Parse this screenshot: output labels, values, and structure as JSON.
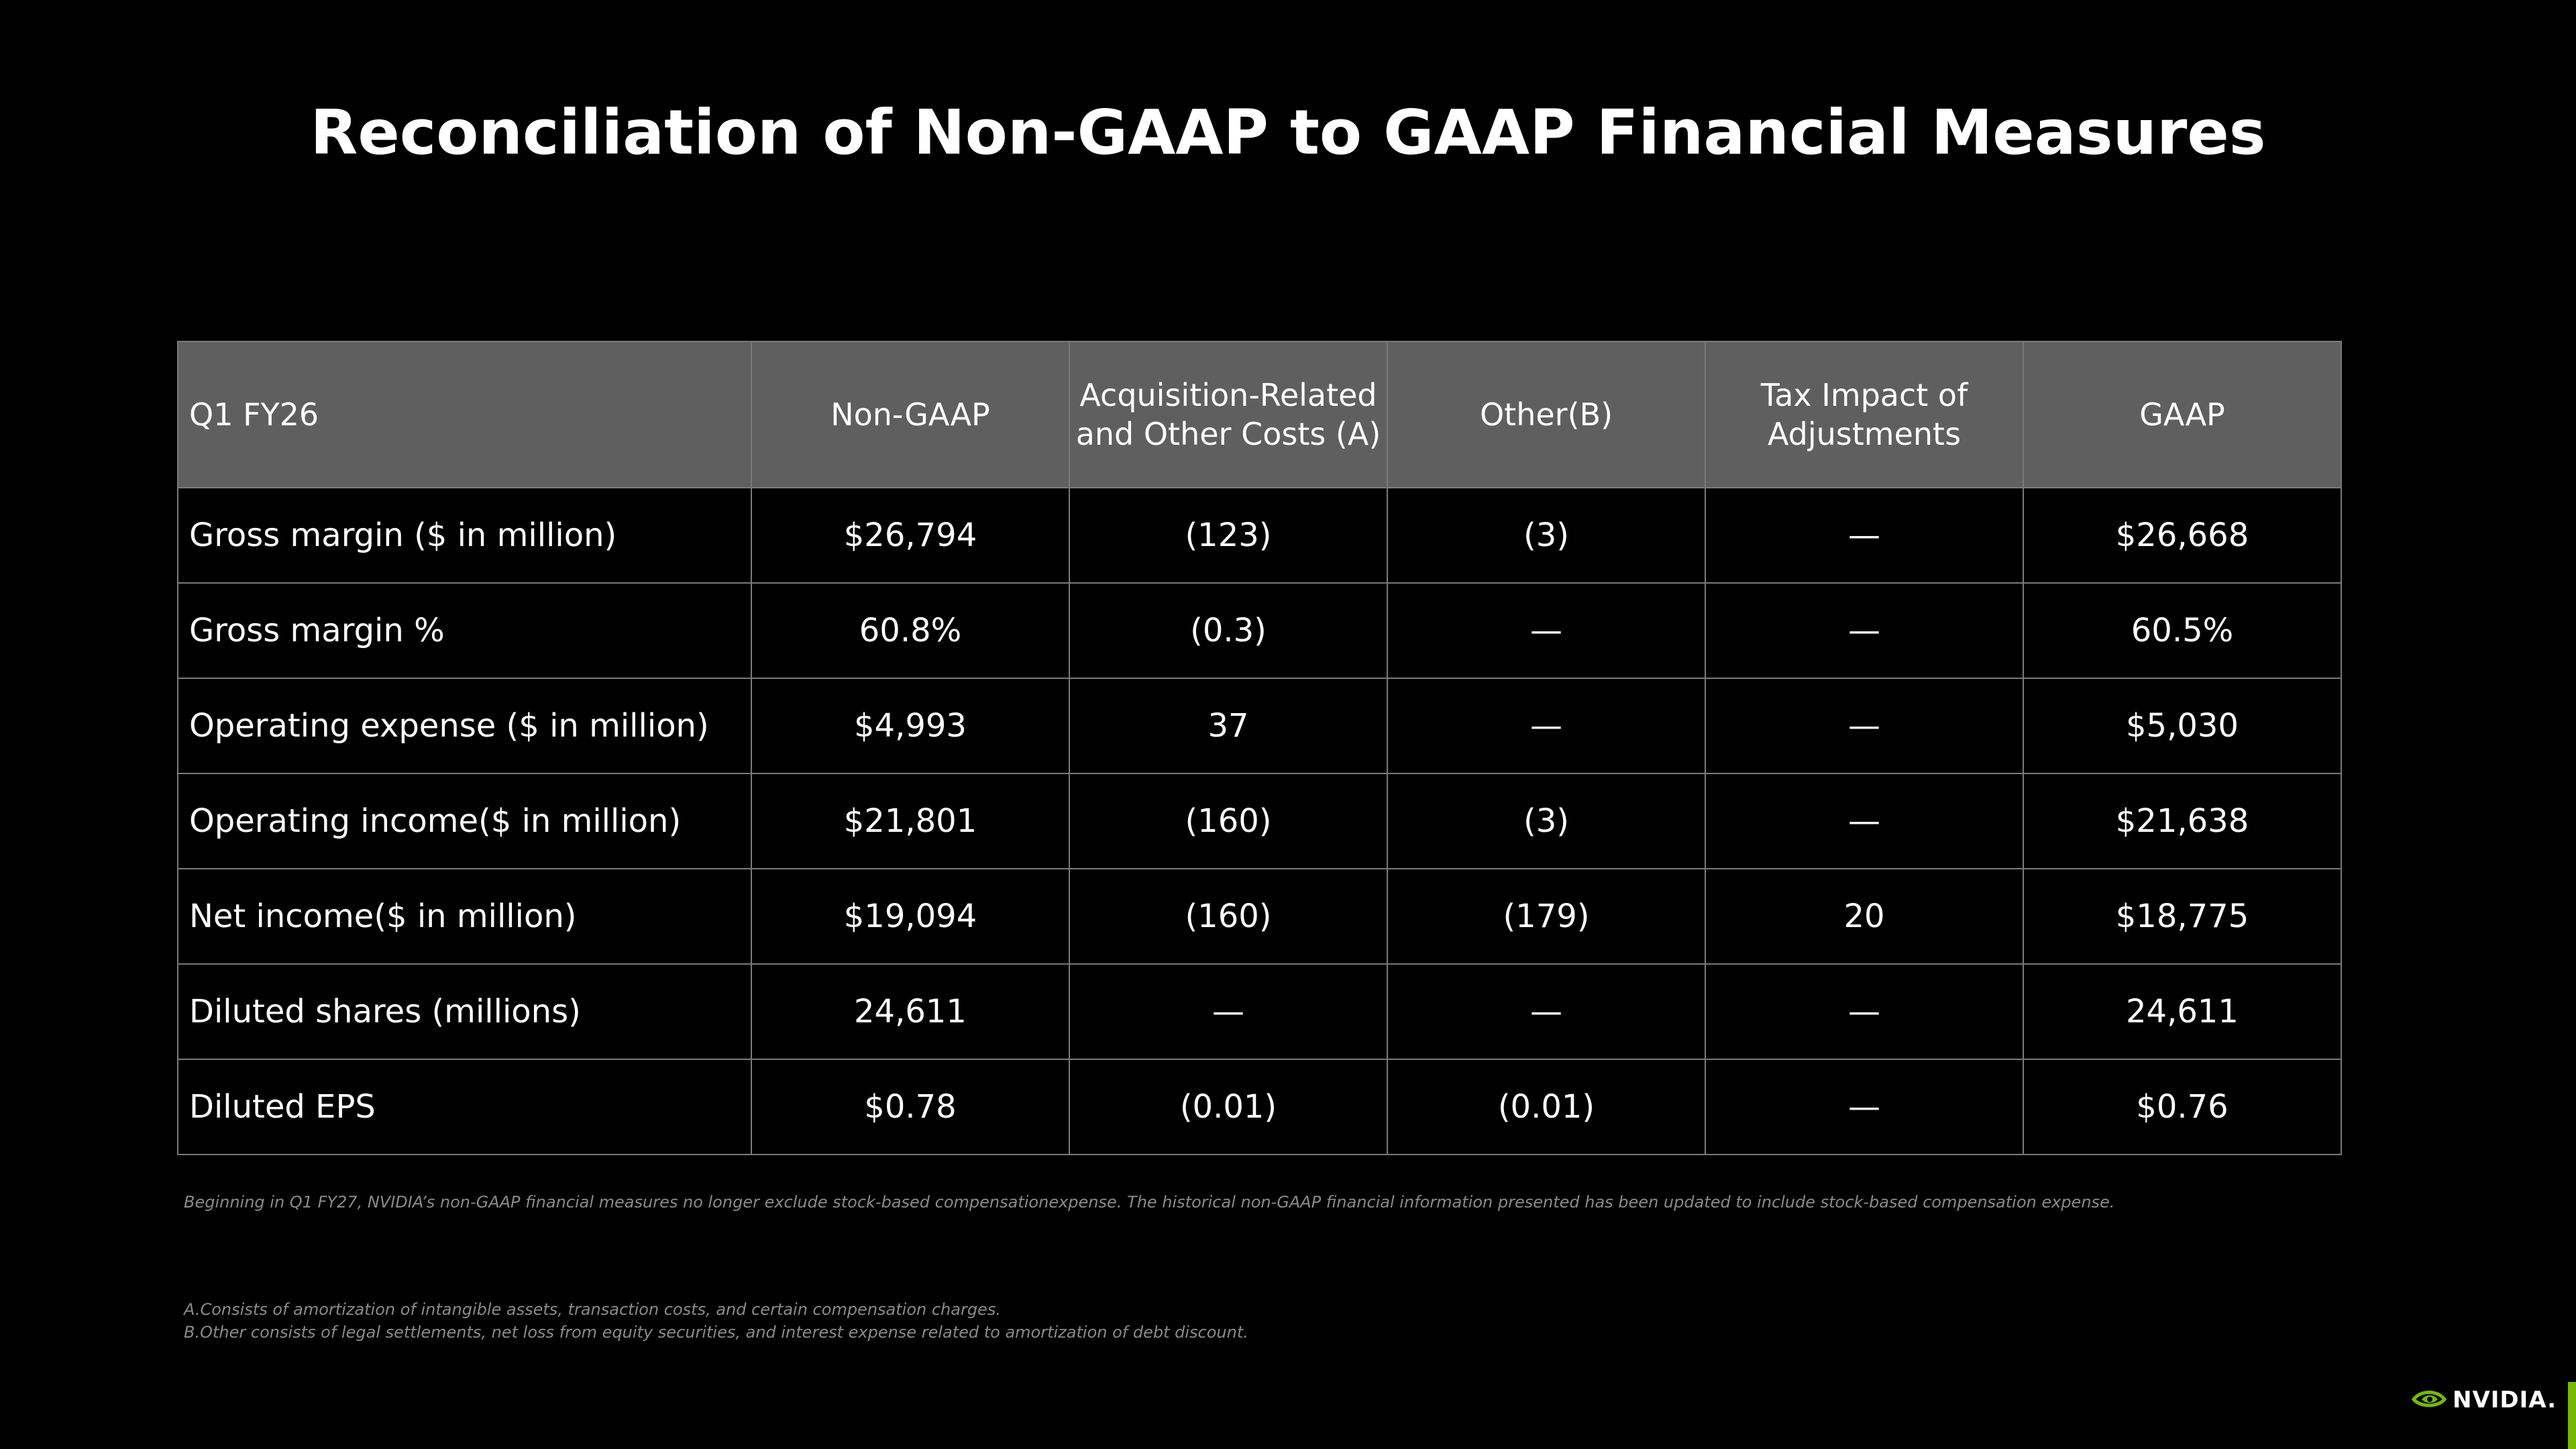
{
  "slide": {
    "title": "Reconciliation of Non-GAAP to GAAP Financial Measures"
  },
  "table": {
    "headers": [
      "Q1 FY26",
      "Non-GAAP",
      "Acquisition-Related and Other Costs (A)",
      "Other(B)",
      "Tax Impact of Adjustments",
      "GAAP"
    ],
    "rows": [
      [
        "Gross margin ($ in million)",
        "$26,794",
        "(123)",
        "(3)",
        "—",
        "$26,668"
      ],
      [
        "Gross margin %",
        "60.8%",
        "(0.3)",
        "—",
        "—",
        "60.5%"
      ],
      [
        "Operating expense ($ in million)",
        "$4,993",
        "37",
        "—",
        "—",
        "$5,030"
      ],
      [
        "Operating income($ in million)",
        "$21,801",
        "(160)",
        "(3)",
        "—",
        "$21,638"
      ],
      [
        "Net income($ in million)",
        "$19,094",
        "(160)",
        "(179)",
        "20",
        "$18,775"
      ],
      [
        "Diluted shares (millions)",
        "24,611",
        "—",
        "—",
        "—",
        "24,611"
      ],
      [
        "Diluted EPS",
        "$0.78",
        "(0.01)",
        "(0.01)",
        "—",
        "$0.76"
      ]
    ]
  },
  "notes": {
    "disclaimer": "Beginning in Q1 FY27, NVIDIA’s non-GAAP financial measures no longer exclude stock-based compensationexpense. The historical non-GAAP financial information presented has been updated to include stock-based compensation expense.",
    "footnote_a": "A.Consists of amortization of intangible assets, transaction costs, and certain compensation charges.",
    "footnote_b": "B.Other consists of legal settlements, net loss from equity securities, and interest expense related to amortization of debt discount."
  },
  "brand": {
    "logo_text": "NVIDIA.",
    "logo_icon": "nvidia-eye-icon",
    "accent_color": "#76b900"
  }
}
